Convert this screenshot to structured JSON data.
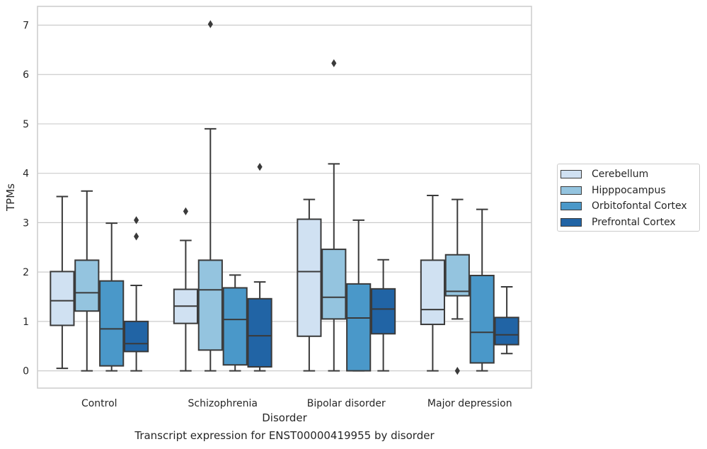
{
  "caption": "Transcript expression for ENST00000419955 by disorder",
  "colors": {
    "series": [
      "#d0e1f2",
      "#94c4df",
      "#4a98c9",
      "#2164a5"
    ],
    "edge": "#3a3a3a",
    "grid": "#cccccc"
  },
  "chart_data": {
    "type": "boxplot",
    "xlabel": "Disorder",
    "ylabel": "TPMs",
    "ylim": [
      -0.35,
      7.38
    ],
    "yticks": [
      0,
      1,
      2,
      3,
      4,
      5,
      6,
      7
    ],
    "grid": true,
    "legend_position": "right",
    "categories": [
      "Control",
      "Schizophrenia",
      "Bipolar disorder",
      "Major depression"
    ],
    "series": [
      {
        "name": "Cerebellum",
        "boxes": [
          {
            "whislo": 0.05,
            "q1": 0.92,
            "med": 1.42,
            "q3": 2.01,
            "whishi": 3.53,
            "fliers": []
          },
          {
            "whislo": 0.0,
            "q1": 0.96,
            "med": 1.31,
            "q3": 1.65,
            "whishi": 2.64,
            "fliers": [
              3.23
            ]
          },
          {
            "whislo": 0.0,
            "q1": 0.7,
            "med": 2.01,
            "q3": 3.07,
            "whishi": 3.47,
            "fliers": []
          },
          {
            "whislo": 0.0,
            "q1": 0.94,
            "med": 1.24,
            "q3": 2.24,
            "whishi": 3.55,
            "fliers": []
          }
        ]
      },
      {
        "name": "Hipppocampus",
        "boxes": [
          {
            "whislo": 0.0,
            "q1": 1.21,
            "med": 1.58,
            "q3": 2.24,
            "whishi": 3.64,
            "fliers": []
          },
          {
            "whislo": 0.0,
            "q1": 0.42,
            "med": 1.64,
            "q3": 2.24,
            "whishi": 4.9,
            "fliers": [
              7.02
            ]
          },
          {
            "whislo": 0.0,
            "q1": 1.05,
            "med": 1.49,
            "q3": 2.46,
            "whishi": 4.19,
            "fliers": [
              6.23
            ]
          },
          {
            "whislo": 1.05,
            "q1": 1.52,
            "med": 1.61,
            "q3": 2.35,
            "whishi": 3.47,
            "fliers": [
              0.0
            ]
          }
        ]
      },
      {
        "name": "Orbitofontal Cortex",
        "boxes": [
          {
            "whislo": 0.0,
            "q1": 0.1,
            "med": 0.85,
            "q3": 1.82,
            "whishi": 2.99,
            "fliers": []
          },
          {
            "whislo": 0.0,
            "q1": 0.12,
            "med": 1.04,
            "q3": 1.68,
            "whishi": 1.94,
            "fliers": []
          },
          {
            "whislo": 0.0,
            "q1": 0.0,
            "med": 1.07,
            "q3": 1.76,
            "whishi": 3.05,
            "fliers": []
          },
          {
            "whislo": 0.0,
            "q1": 0.16,
            "med": 0.78,
            "q3": 1.93,
            "whishi": 3.27,
            "fliers": []
          }
        ]
      },
      {
        "name": "Prefrontal Cortex",
        "boxes": [
          {
            "whislo": 0.0,
            "q1": 0.39,
            "med": 0.55,
            "q3": 1.0,
            "whishi": 1.73,
            "fliers": [
              2.72,
              3.05
            ]
          },
          {
            "whislo": 0.0,
            "q1": 0.08,
            "med": 0.71,
            "q3": 1.46,
            "whishi": 1.8,
            "fliers": [
              4.13
            ]
          },
          {
            "whislo": 0.0,
            "q1": 0.75,
            "med": 1.25,
            "q3": 1.66,
            "whishi": 2.25,
            "fliers": []
          },
          {
            "whislo": 0.35,
            "q1": 0.53,
            "med": 0.73,
            "q3": 1.08,
            "whishi": 1.7,
            "fliers": []
          }
        ]
      }
    ]
  }
}
